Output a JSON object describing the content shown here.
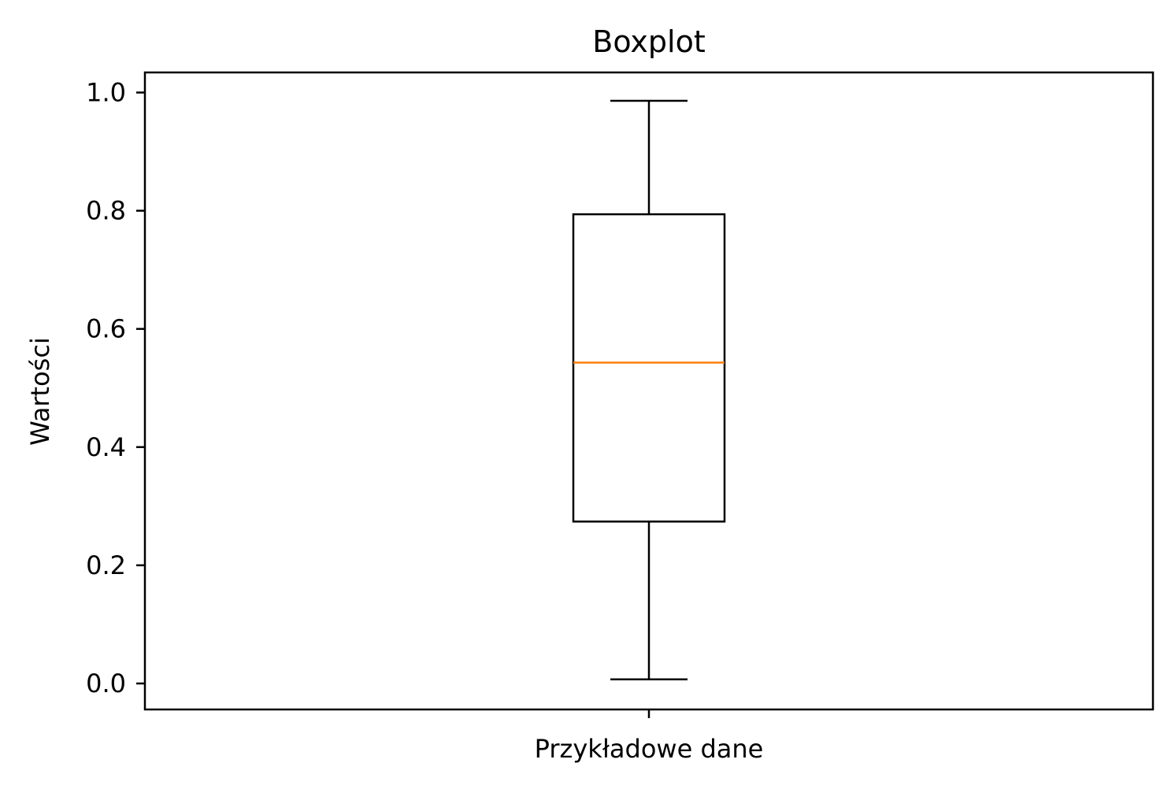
{
  "chart_data": {
    "type": "boxplot",
    "title": "Boxplot",
    "xlabel": "",
    "ylabel": "Wartości",
    "categories": [
      "Przykładowe dane"
    ],
    "boxes": [
      {
        "category": "Przykładowe dane",
        "whisker_low": 0.007,
        "q1": 0.274,
        "median": 0.543,
        "q3": 0.794,
        "whisker_high": 0.986
      }
    ],
    "ylim": [
      -0.044,
      1.034
    ],
    "yticks": [
      0.0,
      0.2,
      0.4,
      0.6,
      0.8,
      1.0
    ],
    "ytick_labels": [
      "0.0",
      "0.2",
      "0.4",
      "0.6",
      "0.8",
      "1.0"
    ],
    "grid": false,
    "legend": "none",
    "colors": {
      "box": "#000000",
      "median": "#ff7f0e",
      "whisker": "#000000",
      "axes": "#000000"
    }
  }
}
